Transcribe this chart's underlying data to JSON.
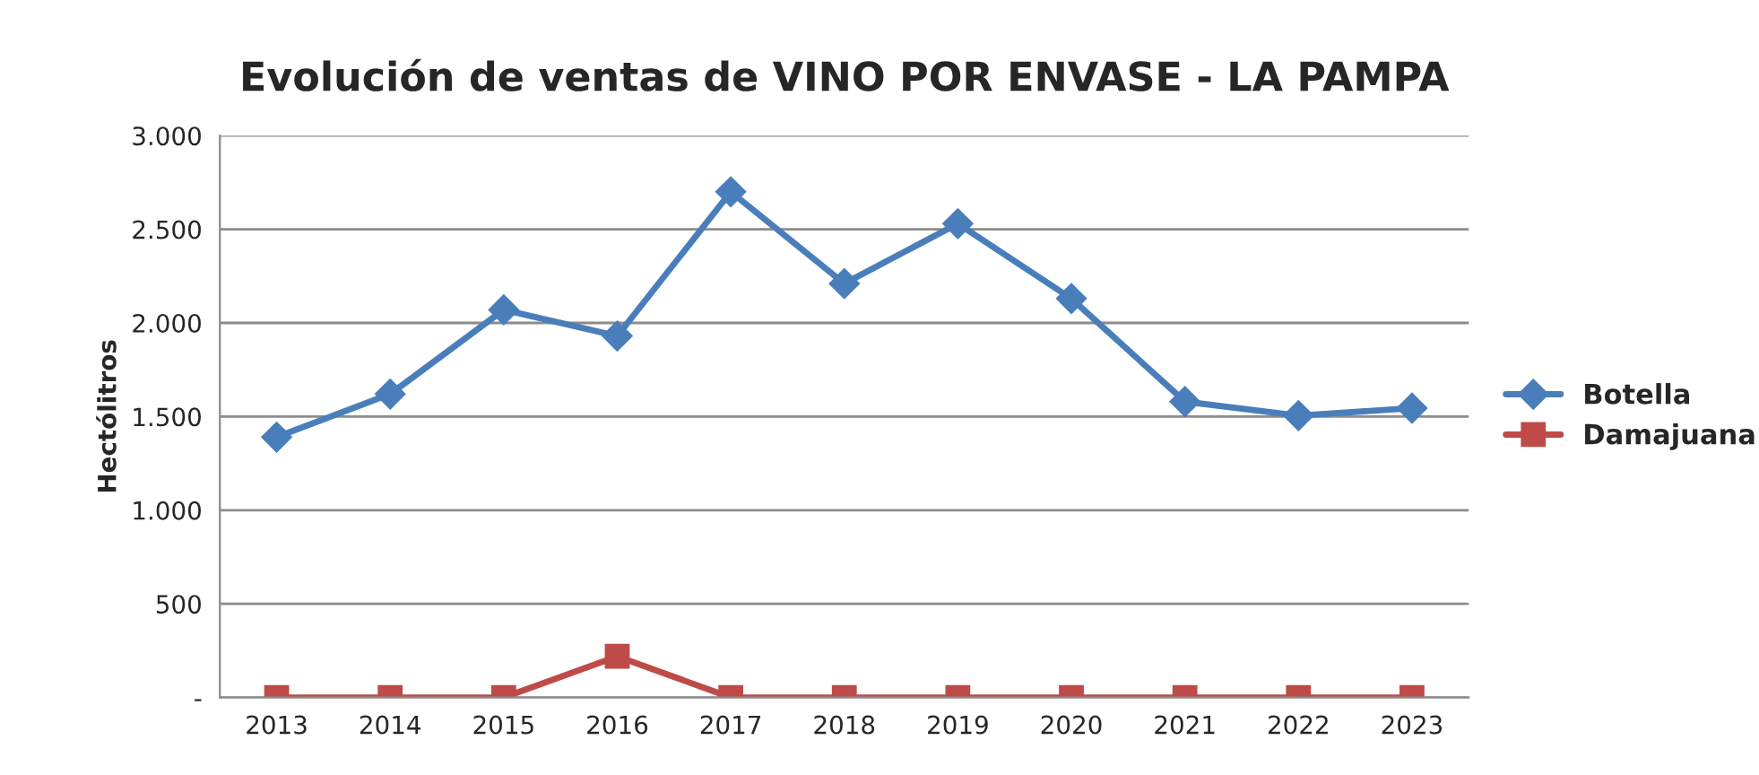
{
  "chart_data": {
    "type": "line",
    "title": "Evolución de ventas de VINO POR ENVASE - LA PAMPA",
    "ylabel": "Hectólitros",
    "categories": [
      "2013",
      "2014",
      "2015",
      "2016",
      "2017",
      "2018",
      "2019",
      "2020",
      "2021",
      "2022",
      "2023"
    ],
    "series": [
      {
        "name": "Botella",
        "color": "#4a7ebb",
        "marker": "diamond",
        "values": [
          1390,
          1620,
          2070,
          1930,
          2700,
          2210,
          2530,
          2130,
          1580,
          1505,
          1545
        ]
      },
      {
        "name": "Damajuana",
        "color": "#be4b48",
        "marker": "square",
        "values": [
          0,
          0,
          0,
          220,
          0,
          0,
          0,
          0,
          0,
          0,
          0
        ]
      }
    ],
    "ylim": [
      0,
      3000
    ],
    "yticks": [
      {
        "value": 0,
        "label": "-"
      },
      {
        "value": 500,
        "label": "500"
      },
      {
        "value": 1000,
        "label": "1.000"
      },
      {
        "value": 1500,
        "label": "1.500"
      },
      {
        "value": 2000,
        "label": "2.000"
      },
      {
        "value": 2500,
        "label": "2.500"
      },
      {
        "value": 3000,
        "label": "3.000"
      }
    ],
    "grid": "y",
    "legend": "right"
  }
}
